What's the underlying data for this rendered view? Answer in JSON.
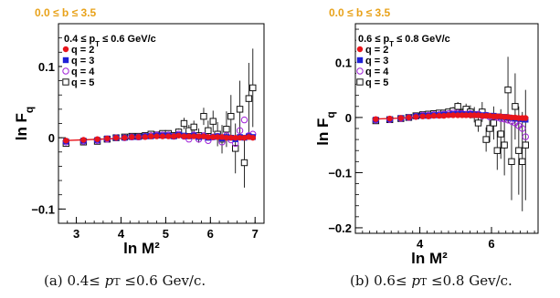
{
  "chart_data": [
    {
      "type": "scatter",
      "panel_label": "(a)",
      "header": "0.0 ≤ b ≤ 3.5",
      "legend_title": "0.4 ≤ p_T ≤ 0.6 GeV/c",
      "xlabel": "ln M²",
      "ylabel": "ln F_q",
      "xlim": [
        2.6,
        7.2
      ],
      "ylim": [
        -0.12,
        0.16
      ],
      "xticks": [
        3,
        4,
        5,
        6,
        7
      ],
      "yticks": [
        -0.1,
        0,
        0.1
      ],
      "ytick_labels": [
        "−0.1",
        "0",
        "0.1"
      ],
      "legend_position": "top-left",
      "grid": false,
      "series": [
        {
          "name": "q = 2",
          "color": "#e8141b",
          "marker": "filled-circle",
          "x": [
            2.77,
            3.16,
            3.47,
            3.69,
            3.89,
            4.08,
            4.24,
            4.39,
            4.54,
            4.67,
            4.8,
            4.93,
            5.06,
            5.18,
            5.29,
            5.41,
            5.52,
            5.63,
            5.74,
            5.85,
            5.95,
            6.06,
            6.16,
            6.26,
            6.36,
            6.46,
            6.56,
            6.66,
            6.76,
            6.86,
            6.95
          ],
          "y": [
            -0.004,
            -0.003,
            -0.002,
            -0.001,
            0.0,
            0.0,
            0.001,
            0.001,
            0.001,
            0.002,
            0.002,
            0.002,
            0.002,
            0.002,
            0.003,
            0.002,
            0.002,
            0.002,
            0.002,
            0.002,
            0.001,
            0.001,
            0.001,
            0.001,
            0.0,
            0.0,
            0.0,
            0.0,
            0.0,
            0.001,
            0.0
          ]
        },
        {
          "name": "q = 3",
          "color": "#1f1fd6",
          "marker": "filled-square",
          "x": [
            2.77,
            3.16,
            3.47,
            3.69,
            3.89,
            4.08,
            4.24,
            4.39,
            4.54,
            4.67,
            4.8,
            4.93,
            5.06,
            5.18,
            5.29,
            5.41,
            5.52,
            5.63,
            5.74,
            5.85,
            5.95,
            6.06,
            6.16,
            6.26,
            6.36,
            6.46,
            6.56,
            6.66,
            6.76,
            6.86,
            6.95
          ],
          "y": [
            -0.005,
            -0.004,
            -0.003,
            -0.001,
            0.0,
            0.0,
            0.001,
            0.001,
            0.002,
            0.002,
            0.003,
            0.003,
            0.003,
            0.002,
            0.004,
            0.003,
            0.002,
            0.003,
            0.001,
            0.002,
            0.0,
            0.001,
            0.002,
            -0.001,
            0.001,
            0.0,
            -0.002,
            0.001,
            0.0,
            0.002,
            0.001
          ]
        },
        {
          "name": "q = 4",
          "color": "#a020d8",
          "marker": "open-circle",
          "x": [
            2.77,
            3.16,
            3.47,
            3.69,
            3.89,
            4.08,
            4.24,
            4.39,
            4.54,
            4.67,
            4.8,
            4.93,
            5.06,
            5.18,
            5.29,
            5.41,
            5.52,
            5.63,
            5.74,
            5.85,
            5.95,
            6.06,
            6.16,
            6.26,
            6.36,
            6.46,
            6.56,
            6.66,
            6.76,
            6.86,
            6.95
          ],
          "y": [
            -0.006,
            -0.005,
            -0.004,
            -0.002,
            0.0,
            0.0,
            0.001,
            0.001,
            0.002,
            0.003,
            0.004,
            0.004,
            0.004,
            0.002,
            0.005,
            0.002,
            -0.002,
            0.004,
            -0.002,
            0.003,
            -0.004,
            0.001,
            0.002,
            -0.006,
            0.003,
            -0.003,
            -0.008,
            0.01,
            0.025,
            0.003,
            0.005
          ]
        },
        {
          "name": "q = 5",
          "color": "#111111",
          "marker": "open-square",
          "x": [
            2.77,
            3.16,
            3.47,
            3.69,
            3.89,
            4.08,
            4.24,
            4.39,
            4.54,
            4.67,
            4.8,
            4.93,
            5.06,
            5.18,
            5.29,
            5.41,
            5.52,
            5.63,
            5.74,
            5.85,
            5.95,
            6.06,
            6.16,
            6.26,
            6.36,
            6.46,
            6.56,
            6.66,
            6.76,
            6.86,
            6.95
          ],
          "y": [
            -0.008,
            -0.006,
            -0.005,
            -0.002,
            0.0,
            0.001,
            0.002,
            0.002,
            0.003,
            0.005,
            0.004,
            0.006,
            0.006,
            0.003,
            0.008,
            0.02,
            0.01,
            0.015,
            0.003,
            0.03,
            0.01,
            0.023,
            0.005,
            -0.002,
            0.012,
            0.03,
            -0.015,
            0.04,
            -0.035,
            0.055,
            0.07
          ],
          "err": [
            0.002,
            0.002,
            0.002,
            0.002,
            0.002,
            0.002,
            0.002,
            0.002,
            0.003,
            0.003,
            0.003,
            0.004,
            0.004,
            0.005,
            0.005,
            0.008,
            0.008,
            0.009,
            0.01,
            0.012,
            0.014,
            0.015,
            0.017,
            0.02,
            0.025,
            0.03,
            0.035,
            0.04,
            0.035,
            0.05,
            0.055
          ]
        }
      ],
      "fit_line": {
        "color": "#e8141b",
        "x": [
          2.7,
          5.6
        ],
        "y": [
          -0.004,
          0.003
        ]
      },
      "caption_text": "0.4≤ p_T ≤0.6 Gev/c."
    },
    {
      "type": "scatter",
      "panel_label": "(b)",
      "header": "0.0 ≤ b ≤ 3.5",
      "legend_title": "0.6 ≤ p_T ≤ 0.8 GeV/c",
      "xlabel": "ln M²",
      "ylabel": "ln F_q",
      "xlim": [
        2.2,
        7.3
      ],
      "ylim": [
        -0.21,
        0.17
      ],
      "xticks": [
        4,
        6
      ],
      "yticks": [
        -0.2,
        -0.1,
        0,
        0.1
      ],
      "ytick_labels": [
        "−0.2",
        "−0.1",
        "0",
        "0.1"
      ],
      "legend_position": "top-left",
      "grid": false,
      "series": [
        {
          "name": "q = 2",
          "color": "#e8141b",
          "marker": "filled-circle",
          "x": [
            2.77,
            3.16,
            3.47,
            3.69,
            3.89,
            4.08,
            4.24,
            4.39,
            4.54,
            4.67,
            4.8,
            4.93,
            5.06,
            5.18,
            5.29,
            5.41,
            5.52,
            5.63,
            5.74,
            5.85,
            5.95,
            6.06,
            6.16,
            6.26,
            6.36,
            6.46,
            6.56,
            6.66,
            6.76,
            6.86,
            6.95
          ],
          "y": [
            -0.003,
            -0.002,
            -0.001,
            0.0,
            0.001,
            0.002,
            0.002,
            0.003,
            0.003,
            0.003,
            0.004,
            0.004,
            0.004,
            0.004,
            0.004,
            0.004,
            0.004,
            0.004,
            0.003,
            0.003,
            0.003,
            0.002,
            0.002,
            0.002,
            0.001,
            0.001,
            0.0,
            0.0,
            -0.001,
            -0.001,
            -0.001
          ]
        },
        {
          "name": "q = 3",
          "color": "#1f1fd6",
          "marker": "filled-square",
          "x": [
            2.77,
            3.16,
            3.47,
            3.69,
            3.89,
            4.08,
            4.24,
            4.39,
            4.54,
            4.67,
            4.8,
            4.93,
            5.06,
            5.18,
            5.29,
            5.41,
            5.52,
            5.63,
            5.74,
            5.85,
            5.95,
            6.06,
            6.16,
            6.26,
            6.36,
            6.46,
            6.56,
            6.66,
            6.76,
            6.86,
            6.95
          ],
          "y": [
            -0.004,
            -0.003,
            -0.001,
            0.0,
            0.002,
            0.003,
            0.003,
            0.004,
            0.004,
            0.005,
            0.005,
            0.006,
            0.006,
            0.006,
            0.005,
            0.006,
            0.005,
            0.005,
            0.004,
            0.004,
            0.003,
            0.003,
            0.002,
            0.001,
            0.001,
            0.0,
            -0.001,
            -0.002,
            -0.002,
            -0.003,
            -0.004
          ]
        },
        {
          "name": "q = 4",
          "color": "#a020d8",
          "marker": "open-circle",
          "x": [
            2.77,
            3.16,
            3.47,
            3.69,
            3.89,
            4.08,
            4.24,
            4.39,
            4.54,
            4.67,
            4.8,
            4.93,
            5.06,
            5.18,
            5.29,
            5.41,
            5.52,
            5.63,
            5.74,
            5.85,
            5.95,
            6.06,
            6.16,
            6.26,
            6.36,
            6.46,
            6.56,
            6.66,
            6.76,
            6.86,
            6.95
          ],
          "y": [
            -0.005,
            -0.004,
            -0.002,
            0.0,
            0.002,
            0.004,
            0.004,
            0.005,
            0.005,
            0.006,
            0.007,
            0.008,
            0.008,
            0.007,
            0.006,
            0.007,
            0.005,
            0.006,
            0.003,
            0.004,
            0.001,
            0.002,
            0.0,
            -0.002,
            -0.003,
            -0.005,
            -0.007,
            -0.01,
            -0.015,
            -0.02,
            -0.035
          ]
        },
        {
          "name": "q = 5",
          "color": "#111111",
          "marker": "open-square",
          "x": [
            2.77,
            3.16,
            3.47,
            3.69,
            3.89,
            4.08,
            4.24,
            4.39,
            4.54,
            4.67,
            4.8,
            4.93,
            5.06,
            5.18,
            5.29,
            5.41,
            5.52,
            5.63,
            5.74,
            5.85,
            5.95,
            6.06,
            6.16,
            6.26,
            6.36,
            6.46,
            6.56,
            6.66,
            6.76,
            6.86,
            6.95
          ],
          "y": [
            -0.006,
            -0.004,
            -0.002,
            0.0,
            0.003,
            0.005,
            0.006,
            0.007,
            0.008,
            0.008,
            0.01,
            0.012,
            0.02,
            0.008,
            0.015,
            0.01,
            0.005,
            -0.01,
            0.01,
            -0.04,
            -0.02,
            -0.01,
            -0.06,
            -0.03,
            -0.05,
            0.05,
            -0.08,
            0.02,
            -0.06,
            -0.08,
            -0.05
          ],
          "err": [
            0.002,
            0.002,
            0.002,
            0.002,
            0.003,
            0.003,
            0.004,
            0.004,
            0.005,
            0.005,
            0.006,
            0.007,
            0.008,
            0.009,
            0.01,
            0.012,
            0.014,
            0.016,
            0.018,
            0.022,
            0.025,
            0.03,
            0.035,
            0.045,
            0.055,
            0.06,
            0.07,
            0.06,
            0.08,
            0.09,
            0.1
          ]
        }
      ],
      "fit_line": {
        "color": "#e8141b",
        "x": [
          2.7,
          5.6
        ],
        "y": [
          -0.003,
          0.004
        ]
      },
      "caption_text": "0.6≤ p_T ≤0.8 Gev/c."
    }
  ],
  "captions": [
    {
      "label": "(a)",
      "prefix": "0.4≤",
      "var": "p",
      "sub": "T",
      "suffix": "≤0.6 Gev/c."
    },
    {
      "label": "(b)",
      "prefix": "0.6≤",
      "var": "p",
      "sub": "T",
      "suffix": "≤0.8 Gev/c."
    }
  ],
  "style": {
    "header_color": "#e8a21a",
    "axis_color": "#000000"
  }
}
